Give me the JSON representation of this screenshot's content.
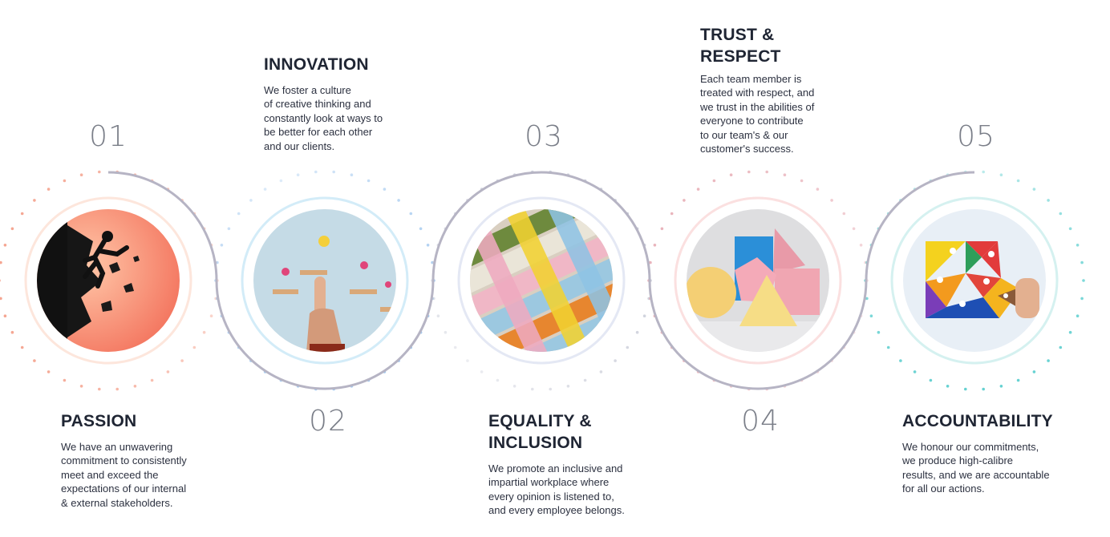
{
  "values": [
    {
      "number": "01",
      "title": [
        "PASSION"
      ],
      "description": [
        "We have an unwavering",
        "commitment to consistently",
        "meet and exceed the",
        "expectations of our internal",
        "& external stakeholders."
      ],
      "accent": "#f4a08b",
      "image_icon": "breaking-wall-climber-icon"
    },
    {
      "number": "02",
      "title": [
        "INNOVATION"
      ],
      "description": [
        "We foster a culture",
        "of creative thinking and",
        "constantly look at ways to",
        "be better for each other",
        "and our clients."
      ],
      "accent": "#9ec6ee",
      "image_icon": "lightbulb-steps-icon"
    },
    {
      "number": "03",
      "title": [
        "EQUALITY &",
        "INCLUSION"
      ],
      "description": [
        "We promote an inclusive and",
        "impartial workplace where",
        "every opinion is listened to,",
        "and every employee belongs."
      ],
      "accent": "#c9ccd8",
      "image_icon": "woven-zippers-icon"
    },
    {
      "number": "04",
      "title": [
        "TRUST &",
        "RESPECT"
      ],
      "description": [
        "Each team member is",
        "treated with respect, and",
        "we trust in the abilities of",
        "everyone to contribute",
        "to our team's & our",
        "customer's success."
      ],
      "accent": "#e8b0b8",
      "image_icon": "geometric-shapes-icon"
    },
    {
      "number": "05",
      "title": [
        "ACCOUNTABILITY"
      ],
      "description": [
        "We honour our commitments,",
        "we produce high-calibre",
        "results, and we are accountable",
        "for all our actions."
      ],
      "accent": "#5ecfcf",
      "image_icon": "tangram-people-icon"
    }
  ]
}
